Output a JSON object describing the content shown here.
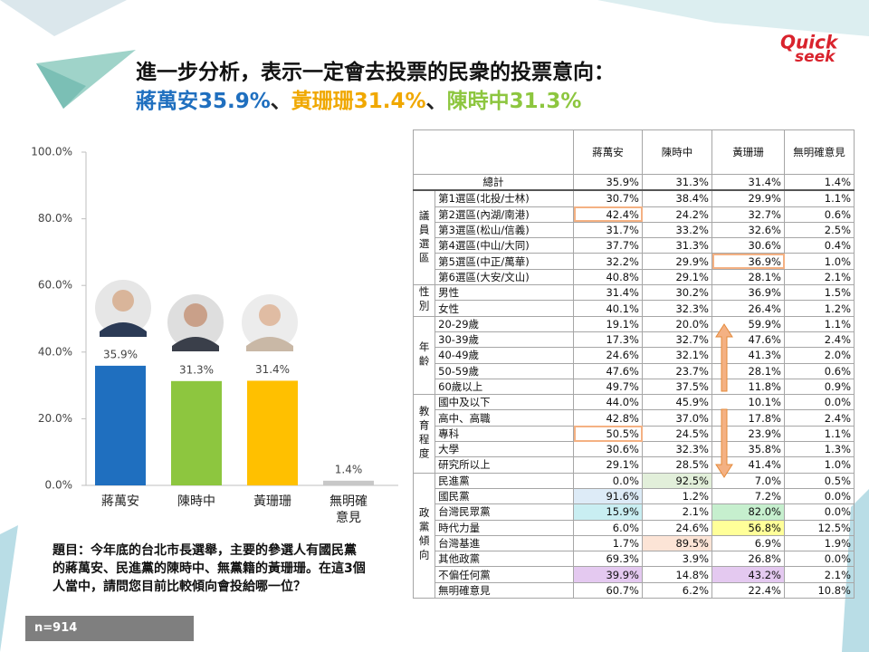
{
  "title": {
    "line1": "進一步分析，表示一定會去投票的民衆的投票意向：",
    "line2": [
      {
        "text": "蔣萬安35.9%",
        "color": "#1f6fbf"
      },
      {
        "text": "、",
        "color": "#222222"
      },
      {
        "text": "黃珊珊31.4%",
        "color": "#f0a800"
      },
      {
        "text": "、",
        "color": "#222222"
      },
      {
        "text": "陳時中31.3%",
        "color": "#8dc63f"
      }
    ]
  },
  "logo": {
    "top": "Quick",
    "bottom": "seek"
  },
  "chart_data": {
    "type": "bar",
    "categories": [
      "蔣萬安",
      "陳時中",
      "黃珊珊",
      "無明確\n意見"
    ],
    "values": [
      35.9,
      31.3,
      31.4,
      1.4
    ],
    "value_labels": [
      "35.9%",
      "31.3%",
      "31.4%",
      "1.4%"
    ],
    "colors": [
      "#1f6fbf",
      "#8dc63f",
      "#ffc000",
      "#c8c8c8"
    ],
    "ylim": [
      0,
      100
    ],
    "yticks": [
      {
        "value": 0,
        "label": "0.0%"
      },
      {
        "value": 20,
        "label": "20.0%"
      },
      {
        "value": 40,
        "label": "40.0%"
      },
      {
        "value": 60,
        "label": "60.0%"
      },
      {
        "value": 80,
        "label": "80.0%"
      },
      {
        "value": 100,
        "label": "100.0%"
      }
    ],
    "grid": false
  },
  "question": [
    "題目：今年底的台北市長選舉，主要的參選人有國民黨",
    "的蔣萬安、民進黨的陳時中、無黨籍的黃珊珊。在這3個",
    "人當中，請問您目前比較傾向會投給哪一位？"
  ],
  "sample": "n=914",
  "table": {
    "columns": [
      "蔣萬安",
      "陳時中",
      "黃珊珊",
      "無明確意見"
    ],
    "total": {
      "label": "總計",
      "values": [
        "35.9%",
        "31.3%",
        "31.4%",
        "1.4%"
      ]
    },
    "groups": [
      {
        "name": "議員選區",
        "rows": [
          {
            "label": "第1選區(北投/士林)",
            "values": [
              "30.7%",
              "38.4%",
              "29.9%",
              "1.1%"
            ]
          },
          {
            "label": "第2選區(內湖/南港)",
            "values": [
              "42.4%",
              "24.2%",
              "32.7%",
              "0.6%"
            ],
            "highlights": [
              {
                "col": 0,
                "border": "#f4b183"
              }
            ]
          },
          {
            "label": "第3選區(松山/信義)",
            "values": [
              "31.7%",
              "33.2%",
              "32.6%",
              "2.5%"
            ]
          },
          {
            "label": "第4選區(中山/大同)",
            "values": [
              "37.7%",
              "31.3%",
              "30.6%",
              "0.4%"
            ]
          },
          {
            "label": "第5選區(中正/萬華)",
            "values": [
              "32.2%",
              "29.9%",
              "36.9%",
              "1.0%"
            ],
            "highlights": [
              {
                "col": 2,
                "border": "#f4b183"
              }
            ]
          },
          {
            "label": "第6選區(大安/文山)",
            "values": [
              "40.8%",
              "29.1%",
              "28.1%",
              "2.1%"
            ]
          }
        ]
      },
      {
        "name": "性別",
        "rows": [
          {
            "label": "男性",
            "values": [
              "31.4%",
              "30.2%",
              "36.9%",
              "1.5%"
            ]
          },
          {
            "label": "女性",
            "values": [
              "40.1%",
              "32.3%",
              "26.4%",
              "1.2%"
            ]
          }
        ]
      },
      {
        "name": "年齡",
        "rows": [
          {
            "label": "20-29歲",
            "values": [
              "19.1%",
              "20.0%",
              "59.9%",
              "1.1%"
            ]
          },
          {
            "label": "30-39歲",
            "values": [
              "17.3%",
              "32.7%",
              "47.6%",
              "2.4%"
            ]
          },
          {
            "label": "40-49歲",
            "values": [
              "24.6%",
              "32.1%",
              "41.3%",
              "2.0%"
            ]
          },
          {
            "label": "50-59歲",
            "values": [
              "47.6%",
              "23.7%",
              "28.1%",
              "0.6%"
            ]
          },
          {
            "label": "60歲以上",
            "values": [
              "49.7%",
              "37.5%",
              "11.8%",
              "0.9%"
            ]
          }
        ]
      },
      {
        "name": "教育程度",
        "rows": [
          {
            "label": "國中及以下",
            "values": [
              "44.0%",
              "45.9%",
              "10.1%",
              "0.0%"
            ]
          },
          {
            "label": "高中、高職",
            "values": [
              "42.8%",
              "37.0%",
              "17.8%",
              "2.4%"
            ]
          },
          {
            "label": "專科",
            "values": [
              "50.5%",
              "24.5%",
              "23.9%",
              "1.1%"
            ],
            "highlights": [
              {
                "col": 0,
                "border": "#f4b183"
              }
            ]
          },
          {
            "label": "大學",
            "values": [
              "30.6%",
              "32.3%",
              "35.8%",
              "1.3%"
            ]
          },
          {
            "label": "研究所以上",
            "values": [
              "29.1%",
              "28.5%",
              "41.4%",
              "1.0%"
            ]
          }
        ]
      },
      {
        "name": "政黨傾向",
        "rows": [
          {
            "label": "民進黨",
            "values": [
              "0.0%",
              "92.5%",
              "7.0%",
              "0.5%"
            ],
            "highlights": [
              {
                "col": 1,
                "fill": "#e2efda"
              }
            ]
          },
          {
            "label": "國民黨",
            "values": [
              "91.6%",
              "1.2%",
              "7.2%",
              "0.0%"
            ],
            "highlights": [
              {
                "col": 0,
                "fill": "#ddebf7"
              }
            ]
          },
          {
            "label": "台灣民眾黨",
            "values": [
              "15.9%",
              "2.1%",
              "82.0%",
              "0.0%"
            ],
            "highlights": [
              {
                "col": 0,
                "fill": "#c9eef2"
              },
              {
                "col": 2,
                "fill": "#c6efce"
              }
            ]
          },
          {
            "label": "時代力量",
            "values": [
              "6.0%",
              "24.6%",
              "56.8%",
              "12.5%"
            ],
            "highlights": [
              {
                "col": 2,
                "fill": "#ffff99"
              }
            ]
          },
          {
            "label": "台灣基進",
            "values": [
              "1.7%",
              "89.5%",
              "6.9%",
              "1.9%"
            ],
            "highlights": [
              {
                "col": 1,
                "fill": "#fce4d6"
              }
            ]
          },
          {
            "label": "其他政黨",
            "values": [
              "69.3%",
              "3.9%",
              "26.8%",
              "0.0%"
            ]
          },
          {
            "label": "不偏任何黨",
            "values": [
              "39.9%",
              "14.8%",
              "43.2%",
              "2.1%"
            ],
            "highlights": [
              {
                "col": 0,
                "fill": "#e4c9f0"
              },
              {
                "col": 2,
                "fill": "#e4c9f0"
              }
            ]
          },
          {
            "label": "無明確意見",
            "values": [
              "60.7%",
              "6.2%",
              "22.4%",
              "10.8%"
            ]
          }
        ]
      }
    ]
  }
}
